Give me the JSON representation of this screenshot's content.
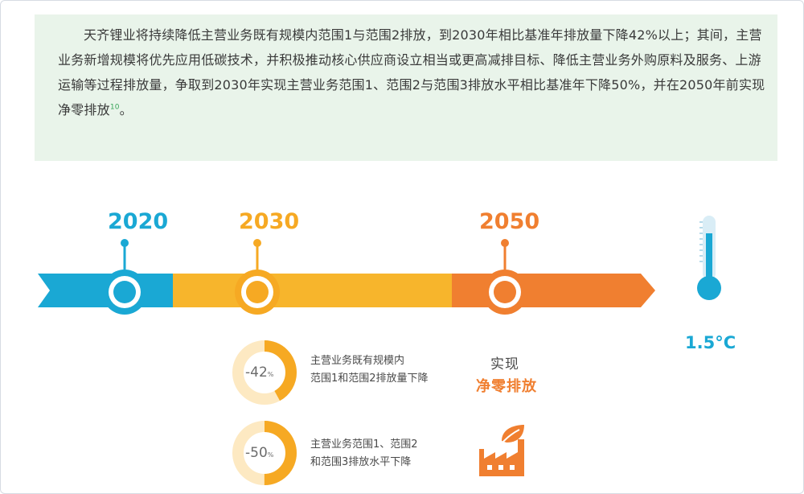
{
  "intro": {
    "paragraph": "天齐锂业将持续降低主营业务既有规模内范围1与范围2排放，到2030年相比基准年排放量下降42%以上；其间，主营业务新增规模将优先应用低碳技术，并积极推动核心供应商设立相当或更高减排目标、降低主营业务外购原料及服务、上游运输等过程排放量，争取到2030年实现主营业务范围1、范围2与范围3排放水平相比基准年下降50%，并在2050年前实现净零排放",
    "footnote": "10"
  },
  "timeline": {
    "milestones": [
      {
        "year": "2020",
        "color": "#1aa8d4"
      },
      {
        "year": "2030",
        "color": "#f6a923"
      },
      {
        "year": "2050",
        "color": "#f07f30"
      }
    ],
    "segment_colors": {
      "blue": "#1aa8d4",
      "yellow": "#f7b52c",
      "orange": "#f07f30"
    }
  },
  "temperature": {
    "label": "1.5°C",
    "icon": "thermometer-icon"
  },
  "targets": [
    {
      "value": "-42",
      "unit": "%",
      "fraction": 0.42,
      "line1": "主营业务既有规模内",
      "line2": "范围1和范围2排放量下降"
    },
    {
      "value": "-50",
      "unit": "%",
      "fraction": 0.5,
      "line1": "主营业务范围1、范围2",
      "line2": "和范围3排放水平下降"
    }
  ],
  "net_zero": {
    "line1": "实现",
    "line2": "净零排放",
    "icon": "factory-leaf-icon"
  }
}
